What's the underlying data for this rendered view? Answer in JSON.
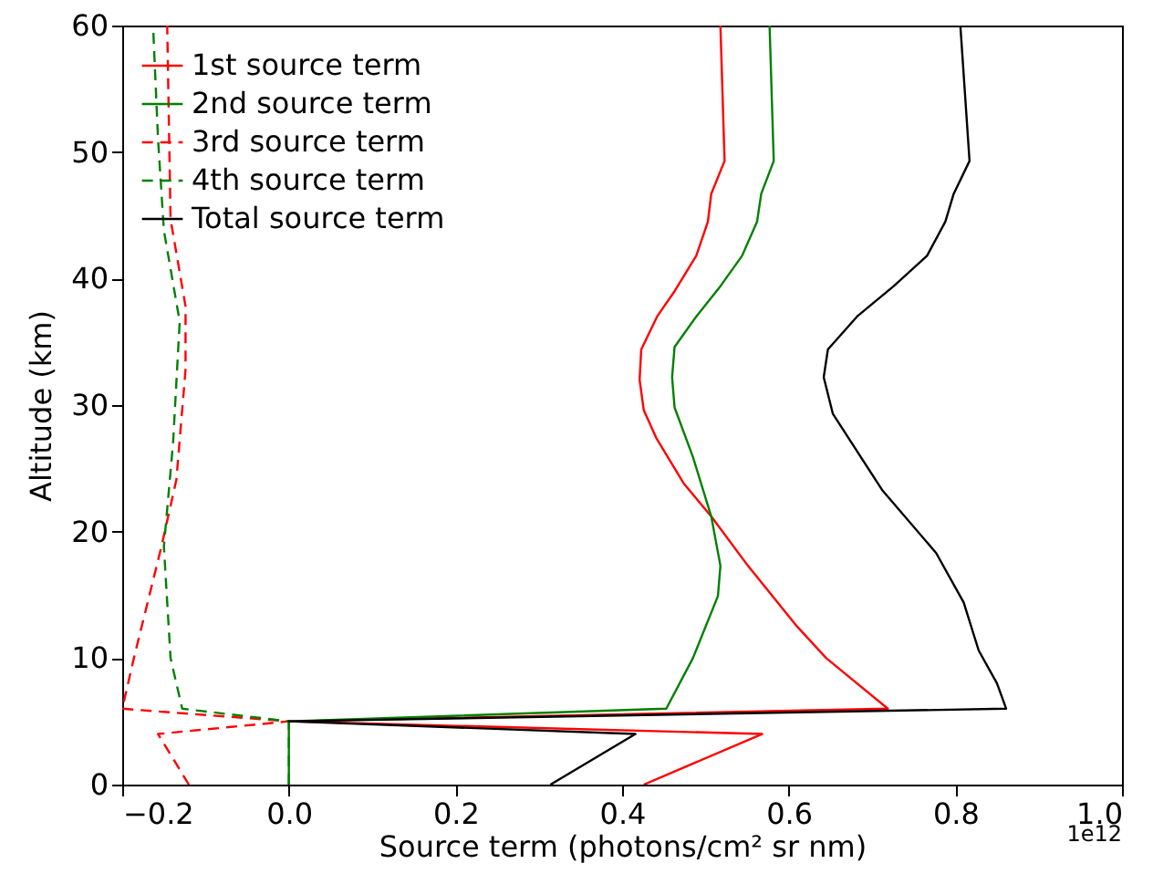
{
  "chart_data": {
    "type": "line",
    "xlabel": "Source term (photons/cm²  sr nm)",
    "ylabel": "Altitude (km)",
    "annotations": [
      "1e12"
    ],
    "xlim": [
      -0.2,
      1.0
    ],
    "ylim": [
      0,
      60
    ],
    "xticks": [
      {
        "value": -0.2,
        "label": "−0.2"
      },
      {
        "value": 0,
        "label": "0.0"
      },
      {
        "value": 0.2,
        "label": "0.2"
      },
      {
        "value": 0.4,
        "label": "0.4"
      },
      {
        "value": 0.6,
        "label": "0.6"
      },
      {
        "value": 0.8,
        "label": "0.8"
      },
      {
        "value": 1.0,
        "label": "1.0"
      }
    ],
    "yticks": [
      0,
      10,
      20,
      30,
      40,
      50,
      60
    ],
    "grid": false,
    "legend": "top left",
    "series": [
      {
        "name": "1st source term",
        "color": "#ff0000",
        "line_style": "solid",
        "x": [
          0.426,
          0.568,
          0.0,
          0.719,
          0.645,
          0.61,
          0.551,
          0.507,
          0.474,
          0.441,
          0.426,
          0.421,
          0.423,
          0.442,
          0.463,
          0.489,
          0.503,
          0.507,
          0.523,
          0.518
        ],
        "values": [
          0,
          4,
          5,
          6,
          10,
          12.5,
          17.3,
          21.2,
          23.8,
          27.4,
          29.6,
          32,
          34.4,
          37,
          39,
          41.8,
          44.5,
          46.7,
          49.3,
          60
        ]
      },
      {
        "name": "2nd source term",
        "color": "#008000",
        "line_style": "solid",
        "x": [
          0.0,
          0.0,
          0.453,
          0.485,
          0.515,
          0.518,
          0.507,
          0.485,
          0.463,
          0.46,
          0.463,
          0.489,
          0.518,
          0.544,
          0.562,
          0.567,
          0.582,
          0.577
        ],
        "values": [
          0,
          5,
          6,
          10,
          14.9,
          17.3,
          21.2,
          25.9,
          29.8,
          32.2,
          34.6,
          37,
          39.4,
          41.8,
          44.5,
          46.7,
          49.3,
          60
        ]
      },
      {
        "name": "3rd source term",
        "color": "#ff0000",
        "line_style": "dashed",
        "x": [
          -0.12,
          -0.157,
          0.0,
          -0.2,
          -0.186,
          -0.153,
          -0.135,
          -0.124,
          -0.124,
          -0.142,
          -0.146
        ],
        "values": [
          0,
          4,
          5,
          6,
          10,
          18.8,
          24.1,
          32.8,
          37.8,
          44.7,
          60
        ]
      },
      {
        "name": "4th source term",
        "color": "#008000",
        "line_style": "dashed",
        "x": [
          0.0,
          0.0,
          -0.128,
          -0.142,
          -0.15,
          -0.139,
          -0.131,
          -0.15,
          -0.157,
          -0.163
        ],
        "values": [
          0,
          5,
          6,
          10,
          18.8,
          27,
          36.6,
          43.8,
          51,
          60
        ]
      },
      {
        "name": "Total source term",
        "color": "#000000",
        "line_style": "solid",
        "x": [
          0.314,
          0.416,
          0.0,
          0.861,
          0.85,
          0.828,
          0.81,
          0.777,
          0.712,
          0.653,
          0.642,
          0.647,
          0.682,
          0.726,
          0.766,
          0.788,
          0.798,
          0.817,
          0.806
        ],
        "values": [
          0,
          4,
          5,
          6,
          8,
          10.6,
          14.4,
          18.3,
          23.3,
          29.3,
          32.2,
          34.4,
          37,
          39.4,
          41.8,
          44.5,
          46.7,
          49.3,
          60
        ]
      }
    ]
  }
}
